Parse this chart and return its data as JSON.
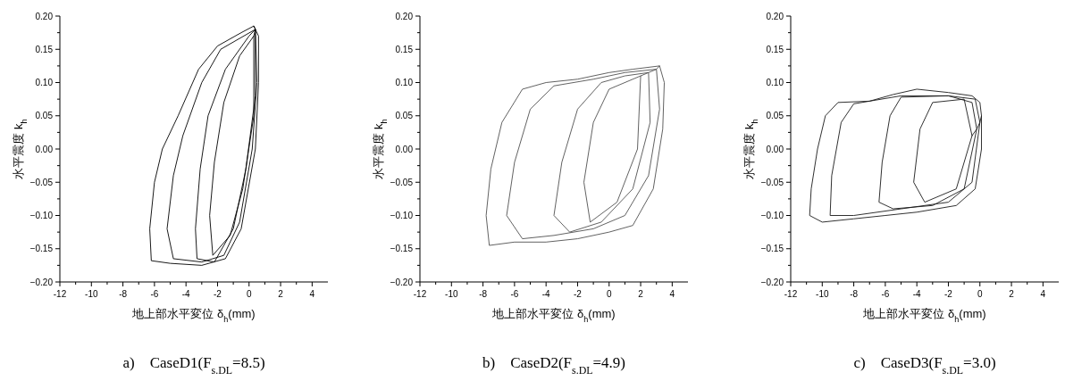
{
  "chart_data": [
    {
      "type": "line",
      "title": "a)　CaseD1(F$_{s.DL}$=8.5)",
      "xlabel": "地上部水平変位 δ$_{h}$(mm)",
      "ylabel": "水平震度 k$_{h}$",
      "xlim": [
        -12,
        5
      ],
      "ylim": [
        -0.2,
        0.2
      ],
      "xticks": [
        -12,
        {
          "value": -11,
          "label": null
        },
        -10,
        {
          "value": -9,
          "label": null
        },
        -8,
        {
          "value": -7,
          "label": null
        },
        -6,
        {
          "value": -5,
          "label": null
        },
        -4,
        {
          "value": -3,
          "label": null
        },
        -2,
        {
          "value": -1,
          "label": null
        },
        0,
        {
          "value": 1,
          "label": null
        },
        2,
        {
          "value": 3,
          "label": null
        },
        4
      ],
      "yticks": [
        {
          "value": -0.2,
          "label": "−0.20"
        },
        {
          "value": -0.175,
          "label": null
        },
        {
          "value": -0.15,
          "label": "−0.15"
        },
        {
          "value": -0.125,
          "label": null
        },
        {
          "value": -0.1,
          "label": "−0.10"
        },
        {
          "value": -0.075,
          "label": null
        },
        {
          "value": -0.05,
          "label": "−0.05"
        },
        {
          "value": -0.025,
          "label": null
        },
        {
          "value": 0,
          "label": "0.00"
        },
        {
          "value": 0.025,
          "label": null
        },
        {
          "value": 0.05,
          "label": "0.05"
        },
        {
          "value": 0.075,
          "label": null
        },
        {
          "value": 0.1,
          "label": "0.10"
        },
        {
          "value": 0.125,
          "label": null
        },
        {
          "value": 0.15,
          "label": "0.15"
        },
        {
          "value": 0.175,
          "label": null
        },
        {
          "value": 0.2,
          "label": "0.20"
        }
      ],
      "series": [
        {
          "color": "#000000",
          "x": [
            0.3,
            0.6,
            0.6,
            0.4,
            -0.5,
            -1.5,
            -3,
            -5,
            -6.2,
            -6.3,
            -6,
            -5.5,
            -4.5,
            -3.2,
            -2,
            -0.5,
            0.3,
            0.4,
            0.5,
            0.2,
            -0.6,
            -1.6,
            -3,
            -4.8,
            -5.2,
            -4.8,
            -4.2,
            -3,
            -1.8,
            0.4,
            0.4,
            -0.2,
            -1,
            -2.2,
            -3.3,
            -3.4,
            -3.1,
            -2.6,
            -1.5,
            0,
            0.4,
            0.3,
            0.3,
            -0.4,
            -1.2,
            -2.3,
            -2.5,
            -2.2,
            -1.6,
            -0.6,
            0.3
          ],
          "values": [
            0.185,
            0.17,
            0.1,
            0,
            -0.12,
            -0.165,
            -0.175,
            -0.172,
            -0.168,
            -0.12,
            -0.05,
            0,
            0.05,
            0.12,
            0.155,
            0.175,
            0.185,
            0.18,
            0.1,
            0,
            -0.11,
            -0.16,
            -0.17,
            -0.165,
            -0.12,
            -0.04,
            0.02,
            0.1,
            0.15,
            0.18,
            0.08,
            -0.03,
            -0.12,
            -0.17,
            -0.165,
            -0.12,
            -0.03,
            0.05,
            0.12,
            0.17,
            0.18,
            0.17,
            0.05,
            -0.06,
            -0.13,
            -0.16,
            -0.1,
            -0.02,
            0.07,
            0.14,
            0.17
          ]
        }
      ]
    },
    {
      "type": "line",
      "title": "b)　CaseD2(F$_{s.DL}$=4.9)",
      "xlabel": "地上部水平変位 δ$_{h}$(mm)",
      "ylabel": "水平震度 k$_{h}$",
      "xlim": [
        -12,
        5
      ],
      "ylim": [
        -0.2,
        0.2
      ],
      "xticks": [
        -12,
        {
          "value": -11,
          "label": null
        },
        -10,
        {
          "value": -9,
          "label": null
        },
        -8,
        {
          "value": -7,
          "label": null
        },
        -6,
        {
          "value": -5,
          "label": null
        },
        -4,
        {
          "value": -3,
          "label": null
        },
        -2,
        {
          "value": -1,
          "label": null
        },
        0,
        {
          "value": 1,
          "label": null
        },
        2,
        {
          "value": 3,
          "label": null
        },
        4
      ],
      "yticks": [
        {
          "value": -0.2,
          "label": "−0.20"
        },
        {
          "value": -0.175,
          "label": null
        },
        {
          "value": -0.15,
          "label": "−0.15"
        },
        {
          "value": -0.125,
          "label": null
        },
        {
          "value": -0.1,
          "label": "−0.10"
        },
        {
          "value": -0.075,
          "label": null
        },
        {
          "value": -0.05,
          "label": "−0.05"
        },
        {
          "value": -0.025,
          "label": null
        },
        {
          "value": 0,
          "label": "0.00"
        },
        {
          "value": 0.025,
          "label": null
        },
        {
          "value": 0.05,
          "label": "0.05"
        },
        {
          "value": 0.075,
          "label": null
        },
        {
          "value": 0.1,
          "label": "0.10"
        },
        {
          "value": 0.125,
          "label": null
        },
        {
          "value": 0.15,
          "label": "0.15"
        },
        {
          "value": 0.175,
          "label": null
        },
        {
          "value": 0.2,
          "label": "0.20"
        }
      ],
      "series": [
        {
          "color": "#505050",
          "x": [
            3.2,
            3.5,
            3.4,
            2.8,
            1.5,
            0,
            -2,
            -4,
            -6,
            -7.6,
            -7.8,
            -7.5,
            -6.8,
            -5.5,
            -4,
            -2,
            0,
            1.5,
            3.2,
            3,
            3.2,
            2.5,
            1,
            -1,
            -3.5,
            -5.5,
            -6.5,
            -6,
            -5,
            -3.5,
            -1,
            1,
            3,
            2.5,
            2.6,
            1.5,
            -0.5,
            -2.5,
            -3.5,
            -3,
            -2,
            -0.5,
            1,
            2.5,
            2,
            1.8,
            0.5,
            -1.2,
            -1.6,
            -1,
            0,
            2
          ],
          "values": [
            0.125,
            0.1,
            0.03,
            -0.06,
            -0.115,
            -0.125,
            -0.135,
            -0.14,
            -0.14,
            -0.145,
            -0.1,
            -0.03,
            0.04,
            0.09,
            0.1,
            0.105,
            0.115,
            0.12,
            0.125,
            0.12,
            0.06,
            -0.04,
            -0.1,
            -0.12,
            -0.13,
            -0.135,
            -0.1,
            -0.02,
            0.06,
            0.095,
            0.105,
            0.115,
            0.12,
            0.115,
            0.04,
            -0.06,
            -0.11,
            -0.125,
            -0.1,
            -0.02,
            0.06,
            0.1,
            0.11,
            0.115,
            0.11,
            0,
            -0.08,
            -0.11,
            -0.05,
            0.04,
            0.09,
            0.11
          ]
        }
      ]
    },
    {
      "type": "line",
      "title": "c)　CaseD3(F$_{s.DL}$=3.0)",
      "xlabel": "地上部水平変位 δ$_{h}$(mm)",
      "ylabel": "水平震度 k$_{h}$",
      "xlim": [
        -12,
        5
      ],
      "ylim": [
        -0.2,
        0.2
      ],
      "xticks": [
        -12,
        {
          "value": -11,
          "label": null
        },
        -10,
        {
          "value": -9,
          "label": null
        },
        -8,
        {
          "value": -7,
          "label": null
        },
        -6,
        {
          "value": -5,
          "label": null
        },
        -4,
        {
          "value": -3,
          "label": null
        },
        -2,
        {
          "value": -1,
          "label": null
        },
        0,
        {
          "value": 1,
          "label": null
        },
        2,
        {
          "value": 3,
          "label": null
        },
        4
      ],
      "yticks": [
        {
          "value": -0.2,
          "label": "−0.20"
        },
        {
          "value": -0.175,
          "label": null
        },
        {
          "value": -0.15,
          "label": "−0.15"
        },
        {
          "value": -0.125,
          "label": null
        },
        {
          "value": -0.1,
          "label": "−0.10"
        },
        {
          "value": -0.075,
          "label": null
        },
        {
          "value": -0.05,
          "label": "−0.05"
        },
        {
          "value": -0.025,
          "label": null
        },
        {
          "value": 0,
          "label": "0.00"
        },
        {
          "value": 0.025,
          "label": null
        },
        {
          "value": 0.05,
          "label": "0.05"
        },
        {
          "value": 0.075,
          "label": null
        },
        {
          "value": 0.1,
          "label": "0.10"
        },
        {
          "value": 0.125,
          "label": null
        },
        {
          "value": 0.15,
          "label": "0.15"
        },
        {
          "value": 0.175,
          "label": null
        },
        {
          "value": 0.2,
          "label": "0.20"
        }
      ],
      "series": [
        {
          "color": "#1a1a1a",
          "x": [
            0.1,
            0.1,
            -0.3,
            -1.5,
            -4,
            -6,
            -8,
            -10,
            -10.8,
            -10.7,
            -10.3,
            -9.8,
            -9,
            -7,
            -5.5,
            -4,
            -2,
            -0.5,
            0,
            0.1,
            0,
            -0.5,
            -2,
            -5,
            -8,
            -9.5,
            -9.4,
            -8.8,
            -8,
            -5,
            -2,
            -0.3,
            0,
            -0.2,
            -1,
            -3,
            -5.5,
            -6.4,
            -6.2,
            -5.7,
            -5,
            -2,
            -0.5,
            -0.2,
            -0.5,
            -1.5,
            -3.5,
            -4.2,
            -3.8,
            -3,
            -1,
            -0.5
          ],
          "values": [
            0.05,
            0,
            -0.06,
            -0.085,
            -0.095,
            -0.1,
            -0.105,
            -0.11,
            -0.1,
            -0.06,
            0,
            0.05,
            0.07,
            0.072,
            0.082,
            0.09,
            0.085,
            0.08,
            0.07,
            0.05,
            0.04,
            -0.05,
            -0.08,
            -0.09,
            -0.1,
            -0.1,
            -0.04,
            0.04,
            0.068,
            0.08,
            0.08,
            0.075,
            0.04,
            0.03,
            -0.06,
            -0.085,
            -0.09,
            -0.08,
            -0.02,
            0.05,
            0.078,
            0.08,
            0.07,
            0.03,
            0.02,
            -0.06,
            -0.08,
            -0.05,
            0.03,
            0.07,
            0.075,
            0.02
          ]
        }
      ]
    }
  ]
}
